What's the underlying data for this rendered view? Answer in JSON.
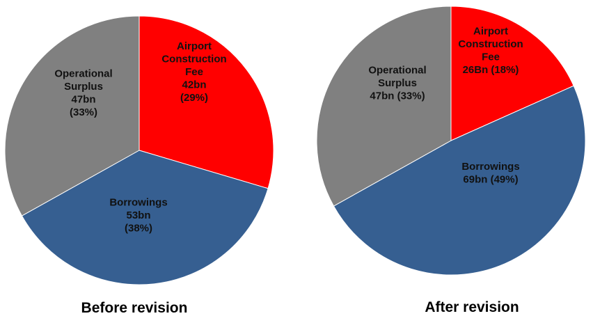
{
  "chart_data": [
    {
      "type": "pie",
      "caption": "Before revision",
      "slices": [
        {
          "name": "Airport Construction Fee",
          "value": 42,
          "label_lines": [
            "Airport",
            "Construction",
            "Fee",
            "42bn",
            "(29%)"
          ],
          "color": "#ff0000"
        },
        {
          "name": "Borrowings",
          "value": 53,
          "label_lines": [
            "Borrowings",
            "53bn",
            "(38%)"
          ],
          "color": "#365f91"
        },
        {
          "name": "Operational Surplus",
          "value": 47,
          "label_lines": [
            "Operational",
            "Surplus",
            "47bn",
            "(33%)"
          ],
          "color": "#808080"
        }
      ]
    },
    {
      "type": "pie",
      "caption": "After revision",
      "slices": [
        {
          "name": "Airport Construction Fee",
          "value": 26,
          "label_lines": [
            "Airport",
            "Construction",
            "Fee",
            "26Bn (18%)"
          ],
          "color": "#ff0000"
        },
        {
          "name": "Borrowings",
          "value": 69,
          "label_lines": [
            "Borrowings",
            "69bn (49%)"
          ],
          "color": "#365f91"
        },
        {
          "name": "Operational Surplus",
          "value": 47,
          "label_lines": [
            "Operational",
            "Surplus",
            "47bn (33%)"
          ],
          "color": "#808080"
        }
      ]
    }
  ]
}
